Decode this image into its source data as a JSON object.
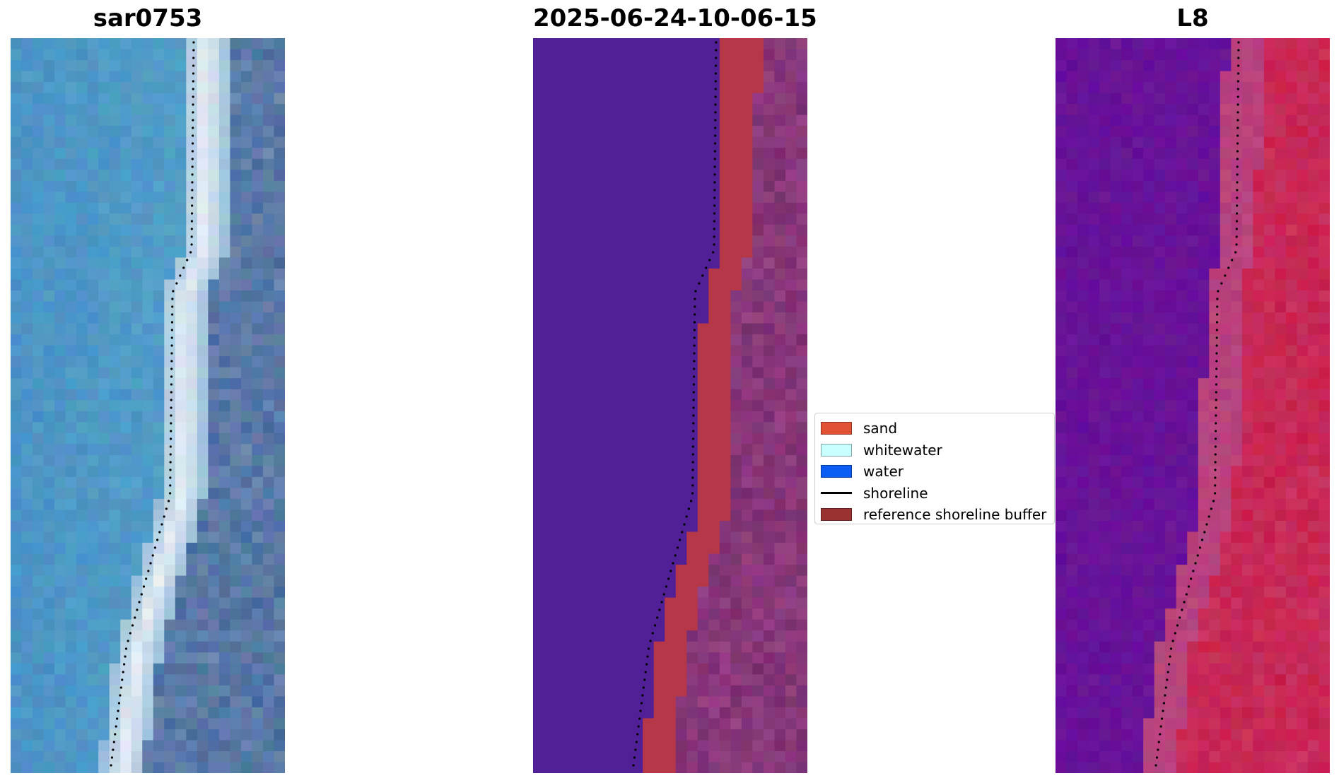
{
  "panels": [
    {
      "title": "sar0753",
      "type": "rgb",
      "colors": {
        "water": "#4a92c6",
        "whitewater": "#e8eef6",
        "land": "#4a6f9e"
      }
    },
    {
      "title": "2025-06-24-10-06-15",
      "type": "classified",
      "colors": {
        "water": "#522096",
        "sand": "#b63848",
        "land": "#7a2e6e"
      }
    },
    {
      "title": "L8",
      "type": "falsecolor",
      "colors": {
        "water": "#6a1596",
        "transition": "#b8437e",
        "land": "#c8204c"
      }
    }
  ],
  "legend": {
    "entries": [
      {
        "label": "sand",
        "kind": "patch",
        "color": "#e05233"
      },
      {
        "label": "whitewater",
        "kind": "patch",
        "color": "#c8ffff"
      },
      {
        "label": "water",
        "kind": "patch",
        "color": "#0a5cf5"
      },
      {
        "label": "shoreline",
        "kind": "line",
        "color": "#000000"
      },
      {
        "label": "reference shoreline buffer",
        "kind": "patch",
        "color": "#9a3232"
      }
    ]
  }
}
